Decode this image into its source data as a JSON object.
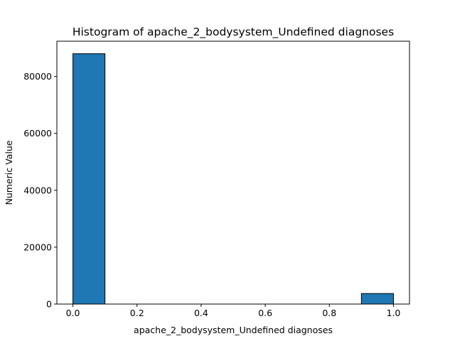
{
  "chart_data": {
    "type": "bar",
    "title": "Histogram of apache_2_bodysystem_Undefined diagnoses",
    "xlabel": "apache_2_bodysystem_Undefined diagnoses",
    "ylabel": "Numeric Value",
    "bins": [
      {
        "x0": 0.0,
        "x1": 0.1,
        "count": 88000
      },
      {
        "x0": 0.1,
        "x1": 0.2,
        "count": 0
      },
      {
        "x0": 0.2,
        "x1": 0.3,
        "count": 0
      },
      {
        "x0": 0.3,
        "x1": 0.4,
        "count": 0
      },
      {
        "x0": 0.4,
        "x1": 0.5,
        "count": 0
      },
      {
        "x0": 0.5,
        "x1": 0.6,
        "count": 0
      },
      {
        "x0": 0.6,
        "x1": 0.7,
        "count": 0
      },
      {
        "x0": 0.7,
        "x1": 0.8,
        "count": 0
      },
      {
        "x0": 0.8,
        "x1": 0.9,
        "count": 0
      },
      {
        "x0": 0.9,
        "x1": 1.0,
        "count": 3700
      }
    ],
    "xlim": [
      -0.05,
      1.05
    ],
    "ylim": [
      0,
      92400
    ],
    "xticks": [
      0.0,
      0.2,
      0.4,
      0.6,
      0.8,
      1.0
    ],
    "xtick_labels": [
      "0.0",
      "0.2",
      "0.4",
      "0.6",
      "0.8",
      "1.0"
    ],
    "yticks": [
      0,
      20000,
      40000,
      60000,
      80000
    ],
    "ytick_labels": [
      "0",
      "20000",
      "40000",
      "60000",
      "80000"
    ],
    "grid": false,
    "bar_color": "#1f77b4",
    "bar_edge_color": "#000000"
  }
}
